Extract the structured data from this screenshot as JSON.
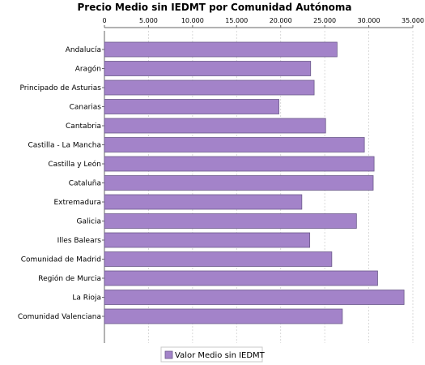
{
  "chart_data": {
    "type": "bar",
    "orientation": "horizontal",
    "title": "Precio Medio sin IEDMT por Comunidad Autónoma",
    "xlim": [
      0,
      35000
    ],
    "ticks": [
      0,
      5000,
      10000,
      15000,
      20000,
      25000,
      30000,
      35000
    ],
    "tick_labels": [
      "0",
      "5.000",
      "10.000",
      "15.000",
      "20.000",
      "25.000",
      "30.000",
      "35.000"
    ],
    "axis_position": "top",
    "grid": true,
    "legend_position": "bottom",
    "categories": [
      "Andalucía",
      "Aragón",
      "Principado de Asturias",
      "Canarias",
      "Cantabria",
      "Castilla - La Mancha",
      "Castilla y León",
      "Cataluña",
      "Extremadura",
      "Galicia",
      "Illes Balears",
      "Comunidad de Madrid",
      "Región de Murcia",
      "La Rioja",
      "Comunidad Valenciana"
    ],
    "series": [
      {
        "name": "Valor Medio sin IEDMT",
        "color": "#a383c9",
        "values": [
          26400,
          23400,
          23800,
          19800,
          25100,
          29500,
          30600,
          30500,
          22400,
          28600,
          23300,
          25800,
          31000,
          34000,
          27000
        ]
      }
    ]
  }
}
